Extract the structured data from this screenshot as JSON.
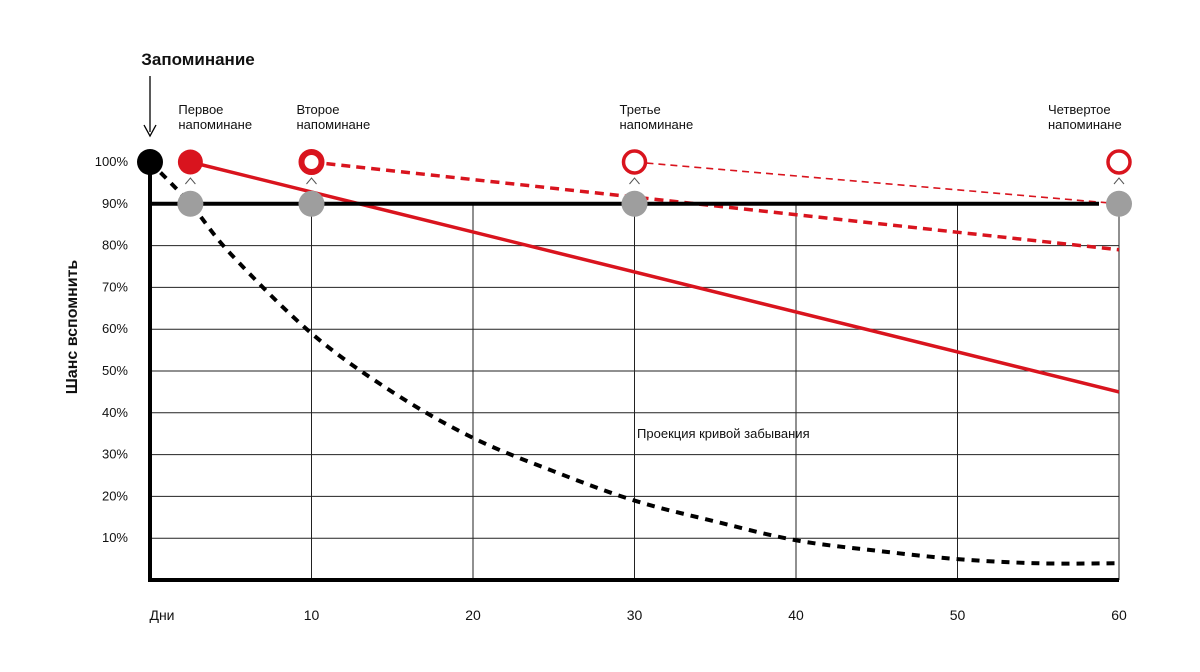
{
  "chart_data": {
    "type": "line",
    "title": "Запоминание",
    "ylabel": "Шанс вспомнить",
    "x_origin_label": "Дни",
    "xlim": [
      0,
      60
    ],
    "ylim": [
      0,
      100
    ],
    "x_ticks": [
      10,
      20,
      30,
      40,
      50,
      60
    ],
    "y_ticks": [
      10,
      20,
      30,
      40,
      50,
      60,
      70,
      80,
      90,
      100
    ],
    "y_tick_labels": [
      "10%",
      "20%",
      "30%",
      "40%",
      "50%",
      "60%",
      "70%",
      "80%",
      "90%",
      "100%"
    ],
    "threshold_y": 90,
    "grid": true,
    "reminders": [
      {
        "x": 2.5,
        "label": "Первое напоминане"
      },
      {
        "x": 10,
        "label": "Второе напоминане"
      },
      {
        "x": 30,
        "label": "Третье напоминане"
      },
      {
        "x": 60,
        "label": "Четвертое напоминане"
      }
    ],
    "annotations": [
      {
        "text": "Проекция кривой забывания",
        "x": 35.5,
        "y": 34
      }
    ],
    "series": [
      {
        "style": "black-dashed",
        "color": "#000000",
        "x": [
          0,
          2.5,
          5,
          10,
          15,
          20,
          25,
          30,
          35,
          40,
          45,
          50,
          55,
          60
        ],
        "y": [
          100,
          90,
          78,
          59,
          45,
          34,
          26,
          19,
          14,
          9.5,
          7,
          5,
          4,
          4
        ]
      },
      {
        "style": "red-solid",
        "color": "#d9141e",
        "x": [
          2.5,
          60
        ],
        "y": [
          100,
          45
        ]
      },
      {
        "style": "red-dashed-thick",
        "color": "#d9141e",
        "x": [
          10,
          60
        ],
        "y": [
          100,
          79
        ]
      },
      {
        "style": "red-dashed-thin",
        "color": "#d9141e",
        "x": [
          30,
          60
        ],
        "y": [
          100,
          90
        ]
      }
    ],
    "colors": {
      "accent": "#d9141e",
      "axis": "#000000",
      "grid": "#222222",
      "marker_gray": "#9e9e9e"
    }
  }
}
